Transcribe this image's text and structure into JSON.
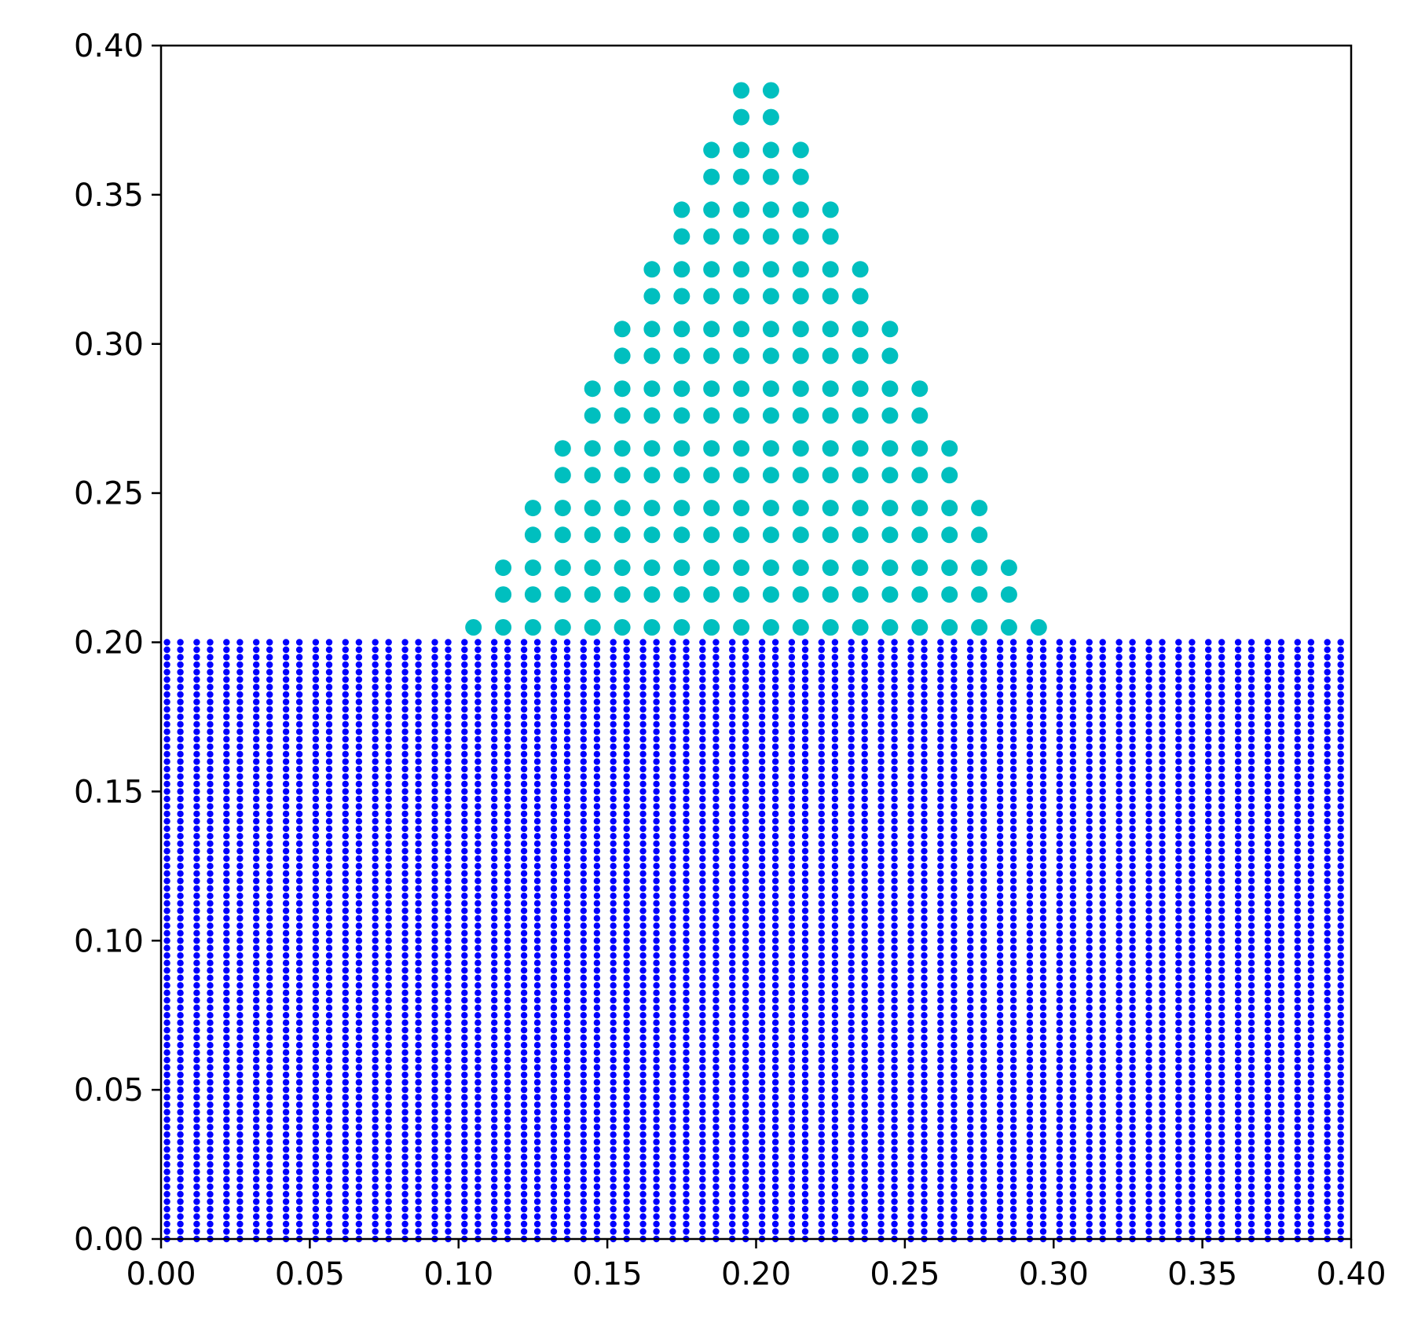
{
  "chart_data": {
    "type": "scatter",
    "title": "",
    "xlabel": "",
    "ylabel": "",
    "xlim": [
      0.0,
      0.4
    ],
    "ylim": [
      0.0,
      0.4
    ],
    "grid": false,
    "x_ticks": [
      "0.00",
      "0.05",
      "0.10",
      "0.15",
      "0.20",
      "0.25",
      "0.30",
      "0.35",
      "0.40"
    ],
    "y_ticks": [
      "0.00",
      "0.05",
      "0.10",
      "0.15",
      "0.20",
      "0.25",
      "0.30",
      "0.35",
      "0.40"
    ],
    "series": [
      {
        "color": "#0000ff",
        "marker": "small-dot",
        "region": "rectangle",
        "x_start": 0.002,
        "x_end": 0.398,
        "y_start": 0.0,
        "y_end": 0.2,
        "column_pairs_x": [
          0.002,
          0.012,
          0.022,
          0.032,
          0.042,
          0.052,
          0.062,
          0.072,
          0.082,
          0.092,
          0.102,
          0.112,
          0.122,
          0.132,
          0.142,
          0.152,
          0.162,
          0.172,
          0.182,
          0.192,
          0.202,
          0.212,
          0.222,
          0.232,
          0.242,
          0.252,
          0.262,
          0.272,
          0.282,
          0.292,
          0.302,
          0.312,
          0.322,
          0.332,
          0.342,
          0.352,
          0.362,
          0.372,
          0.382,
          0.392
        ],
        "pair_offset": 0.0045,
        "row_spacing": 0.0025
      },
      {
        "color": "#00bfbf",
        "marker": "large-dot",
        "region": "triangle",
        "base_y": 0.205,
        "row_spacing": 0.0085,
        "block_spacing": 0.02,
        "rows": [
          {
            "y": 0.205,
            "x": [
              0.105,
              0.115,
              0.125,
              0.135,
              0.145,
              0.155,
              0.165,
              0.175,
              0.185,
              0.195,
              0.205,
              0.215,
              0.225,
              0.235,
              0.245,
              0.255,
              0.265,
              0.275,
              0.285,
              0.295
            ]
          },
          {
            "y": 0.216,
            "x": [
              0.115,
              0.125,
              0.135,
              0.145,
              0.155,
              0.165,
              0.175,
              0.185,
              0.195,
              0.205,
              0.215,
              0.225,
              0.235,
              0.245,
              0.255,
              0.265,
              0.275,
              0.285
            ]
          },
          {
            "y": 0.225,
            "x": [
              0.115,
              0.125,
              0.135,
              0.145,
              0.155,
              0.165,
              0.175,
              0.185,
              0.195,
              0.205,
              0.215,
              0.225,
              0.235,
              0.245,
              0.255,
              0.265,
              0.275,
              0.285
            ]
          },
          {
            "y": 0.236,
            "x": [
              0.125,
              0.135,
              0.145,
              0.155,
              0.165,
              0.175,
              0.185,
              0.195,
              0.205,
              0.215,
              0.225,
              0.235,
              0.245,
              0.255,
              0.265,
              0.275
            ]
          },
          {
            "y": 0.245,
            "x": [
              0.125,
              0.135,
              0.145,
              0.155,
              0.165,
              0.175,
              0.185,
              0.195,
              0.205,
              0.215,
              0.225,
              0.235,
              0.245,
              0.255,
              0.265,
              0.275
            ]
          },
          {
            "y": 0.256,
            "x": [
              0.135,
              0.145,
              0.155,
              0.165,
              0.175,
              0.185,
              0.195,
              0.205,
              0.215,
              0.225,
              0.235,
              0.245,
              0.255,
              0.265
            ]
          },
          {
            "y": 0.265,
            "x": [
              0.135,
              0.145,
              0.155,
              0.165,
              0.175,
              0.185,
              0.195,
              0.205,
              0.215,
              0.225,
              0.235,
              0.245,
              0.255,
              0.265
            ]
          },
          {
            "y": 0.276,
            "x": [
              0.145,
              0.155,
              0.165,
              0.175,
              0.185,
              0.195,
              0.205,
              0.215,
              0.225,
              0.235,
              0.245,
              0.255
            ]
          },
          {
            "y": 0.285,
            "x": [
              0.145,
              0.155,
              0.165,
              0.175,
              0.185,
              0.195,
              0.205,
              0.215,
              0.225,
              0.235,
              0.245,
              0.255
            ]
          },
          {
            "y": 0.296,
            "x": [
              0.155,
              0.165,
              0.175,
              0.185,
              0.195,
              0.205,
              0.215,
              0.225,
              0.235,
              0.245
            ]
          },
          {
            "y": 0.305,
            "x": [
              0.155,
              0.165,
              0.175,
              0.185,
              0.195,
              0.205,
              0.215,
              0.225,
              0.235,
              0.245
            ]
          },
          {
            "y": 0.316,
            "x": [
              0.165,
              0.175,
              0.185,
              0.195,
              0.205,
              0.215,
              0.225,
              0.235
            ]
          },
          {
            "y": 0.325,
            "x": [
              0.165,
              0.175,
              0.185,
              0.195,
              0.205,
              0.215,
              0.225,
              0.235
            ]
          },
          {
            "y": 0.336,
            "x": [
              0.175,
              0.185,
              0.195,
              0.205,
              0.215,
              0.225
            ]
          },
          {
            "y": 0.345,
            "x": [
              0.175,
              0.185,
              0.195,
              0.205,
              0.215,
              0.225
            ]
          },
          {
            "y": 0.356,
            "x": [
              0.185,
              0.195,
              0.205,
              0.215
            ]
          },
          {
            "y": 0.365,
            "x": [
              0.185,
              0.195,
              0.205,
              0.215
            ]
          },
          {
            "y": 0.376,
            "x": [
              0.195,
              0.205
            ]
          },
          {
            "y": 0.385,
            "x": [
              0.195,
              0.205
            ]
          }
        ]
      }
    ]
  }
}
